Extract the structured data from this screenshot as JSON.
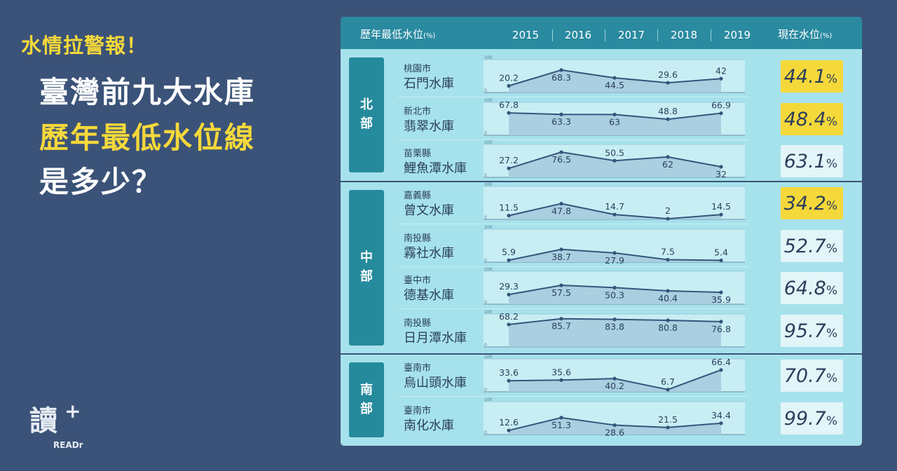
{
  "title": {
    "tag": "水情拉警報！",
    "line1": "臺灣前九大水庫",
    "line2": "歷年最低水位線",
    "line3": "是多少？",
    "tag_color": "#f5d83a",
    "highlight_color": "#f5d83a"
  },
  "logo": {
    "char": "讀",
    "plus": "+",
    "text": "READr"
  },
  "header": {
    "title": "歷年最低水位",
    "unit": "(%)",
    "years": [
      "2015",
      "2016",
      "2017",
      "2018",
      "2019"
    ],
    "current_title": "現在水位",
    "current_unit": "(%)"
  },
  "colors": {
    "header_bg": "#2a8aa0",
    "panel_bg": "#a6e2ec",
    "chart_bg": "#c8eef4",
    "area_fill": "#a9cfe0",
    "line": "#34557a",
    "warning": "#f5d83a",
    "normal_box": "#e2f5f8"
  },
  "chart_data": {
    "type": "line",
    "x": [
      "2015",
      "2016",
      "2017",
      "2018",
      "2019"
    ],
    "ylim": [
      0,
      100
    ],
    "yticks": [
      "100",
      "0"
    ],
    "regions": [
      {
        "name": "北部",
        "chars": [
          "北",
          "部"
        ]
      },
      {
        "name": "中部",
        "chars": [
          "中",
          "部"
        ]
      },
      {
        "name": "南部",
        "chars": [
          "南",
          "部"
        ]
      }
    ],
    "reservoirs": [
      {
        "region": "北部",
        "county": "桃園市",
        "name": "石門水庫",
        "values": [
          20.2,
          68.3,
          44.5,
          29.6,
          42
        ],
        "labels": [
          "20.2",
          "68.3",
          "44.5",
          "29.6",
          "42"
        ],
        "current": "44.1",
        "warning": true
      },
      {
        "region": "北部",
        "county": "新北市",
        "name": "翡翠水庫",
        "values": [
          67.8,
          63.3,
          63,
          48.8,
          66.9
        ],
        "labels": [
          "67.8",
          "63.3",
          "63",
          "48.8",
          "66.9"
        ],
        "current": "48.4",
        "warning": true
      },
      {
        "region": "北部",
        "county": "苗栗縣",
        "name": "鯉魚潭水庫",
        "values": [
          27.2,
          76.5,
          50.5,
          62,
          32
        ],
        "labels": [
          "27.2",
          "76.5",
          "50.5",
          "62",
          "32"
        ],
        "current": "63.1",
        "warning": false
      },
      {
        "region": "中部",
        "county": "嘉義縣",
        "name": "曾文水庫",
        "values": [
          11.5,
          47.8,
          14.7,
          2,
          14.5
        ],
        "labels": [
          "11.5",
          "47.8",
          "14.7",
          "2",
          "14.5"
        ],
        "current": "34.2",
        "warning": true
      },
      {
        "region": "中部",
        "county": "南投縣",
        "name": "霧社水庫",
        "values": [
          5.9,
          38.7,
          27.9,
          7.5,
          5.4
        ],
        "labels": [
          "5.9",
          "38.7",
          "27.9",
          "7.5",
          "5.4"
        ],
        "current": "52.7",
        "warning": false
      },
      {
        "region": "中部",
        "county": "臺中市",
        "name": "德基水庫",
        "values": [
          29.3,
          57.5,
          50.3,
          40.4,
          35.9
        ],
        "labels": [
          "29.3",
          "57.5",
          "50.3",
          "40.4",
          "35.9"
        ],
        "current": "64.8",
        "warning": false
      },
      {
        "region": "中部",
        "county": "南投縣",
        "name": "日月潭水庫",
        "values": [
          68.2,
          85.7,
          83.8,
          80.8,
          76.8
        ],
        "labels": [
          "68.2",
          "85.7",
          "83.8",
          "80.8",
          "76.8"
        ],
        "current": "95.7",
        "warning": false
      },
      {
        "region": "南部",
        "county": "臺南市",
        "name": "烏山頭水庫",
        "values": [
          33.6,
          35.6,
          40.2,
          6.7,
          66.4
        ],
        "labels": [
          "33.6",
          "35.6",
          "40.2",
          "6.7",
          "66.4"
        ],
        "current": "70.7",
        "warning": false
      },
      {
        "region": "南部",
        "county": "臺南市",
        "name": "南化水庫",
        "values": [
          12.6,
          51.3,
          28.6,
          21.5,
          34.4
        ],
        "labels": [
          "12.6",
          "51.3",
          "28.6",
          "21.5",
          "34.4"
        ],
        "current": "99.7",
        "warning": false
      }
    ],
    "current_suffix": "%"
  }
}
